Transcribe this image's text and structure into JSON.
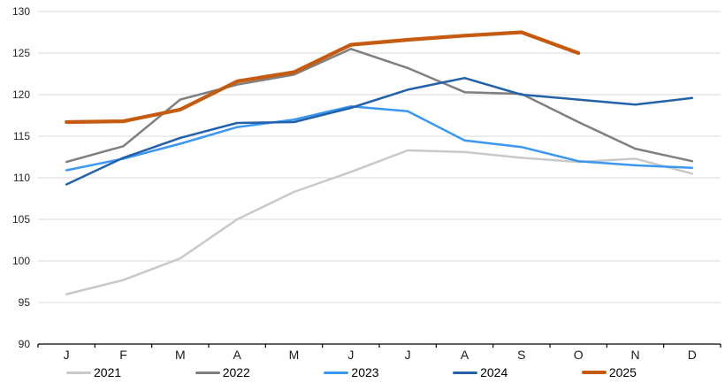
{
  "chart_data": {
    "type": "line",
    "title": "",
    "xlabel": "",
    "ylabel": "",
    "categories": [
      "J",
      "F",
      "M",
      "A",
      "M",
      "J",
      "J",
      "A",
      "S",
      "O",
      "N",
      "D"
    ],
    "ylim": [
      90,
      130
    ],
    "yticks": [
      90,
      95,
      100,
      105,
      110,
      115,
      120,
      125,
      130
    ],
    "grid": "horizontal",
    "grid_color": "#d9d9d9",
    "axis_color": "#000000",
    "tick_label_color": "#262626",
    "legend_position": "bottom",
    "series": [
      {
        "name": "2021",
        "color": "#c9c9c9",
        "thick": false,
        "values": [
          96.0,
          97.7,
          100.3,
          105.0,
          108.3,
          110.7,
          113.3,
          113.1,
          112.4,
          111.9,
          112.3,
          110.5
        ]
      },
      {
        "name": "2022",
        "color": "#7f7f7f",
        "thick": false,
        "values": [
          111.9,
          113.8,
          119.4,
          121.2,
          122.4,
          125.5,
          123.2,
          120.3,
          120.1,
          116.7,
          113.5,
          112.0
        ]
      },
      {
        "name": "2023",
        "color": "#3b97f0",
        "thick": false,
        "values": [
          110.9,
          112.3,
          114.1,
          116.1,
          117.0,
          118.6,
          118.0,
          114.5,
          113.7,
          112.0,
          111.5,
          111.2
        ]
      },
      {
        "name": "2024",
        "color": "#2361a9",
        "thick": false,
        "values": [
          109.2,
          112.4,
          114.8,
          116.6,
          116.7,
          118.4,
          120.6,
          122.0,
          120.0,
          119.4,
          118.8,
          119.6
        ]
      },
      {
        "name": "2025",
        "color": "#c55a11",
        "thick": true,
        "values": [
          116.7,
          116.8,
          118.2,
          121.6,
          122.7,
          126.0,
          126.6,
          127.1,
          127.5,
          125.0,
          null,
          null
        ]
      }
    ]
  }
}
